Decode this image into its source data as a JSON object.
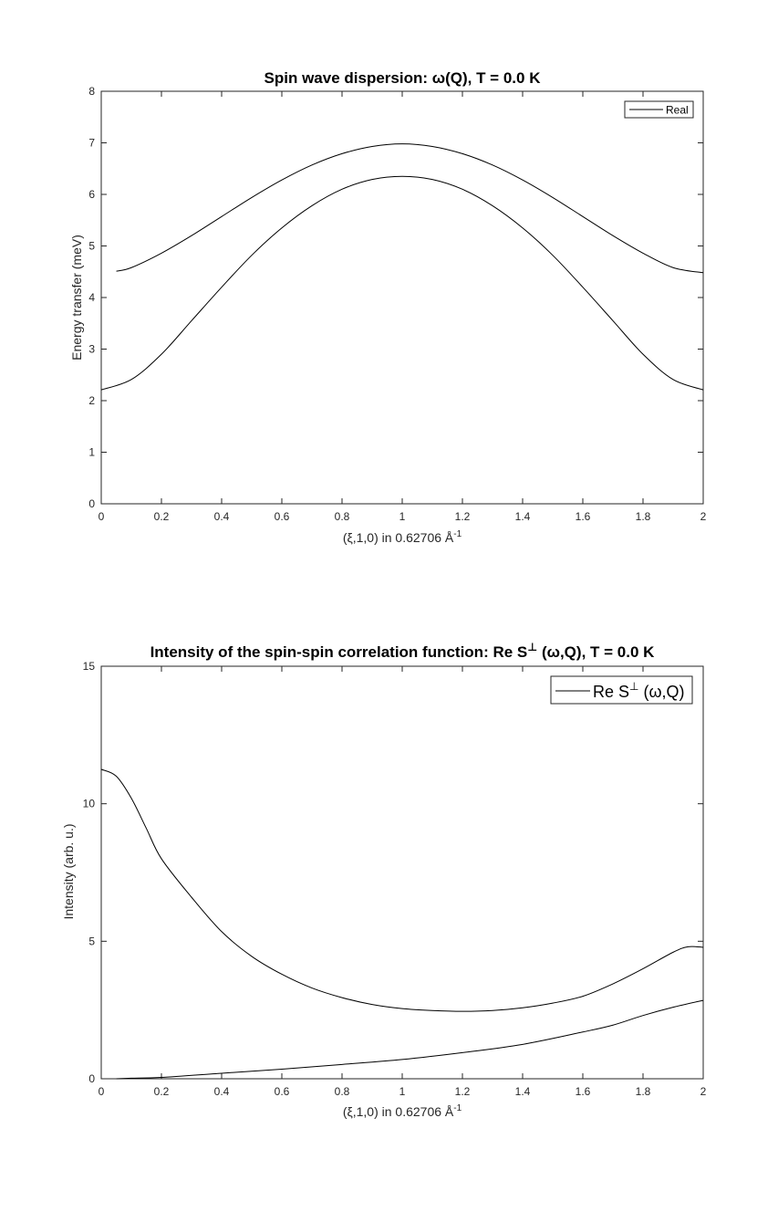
{
  "chart_data": [
    {
      "type": "line",
      "title": "Spin wave dispersion: ω(Q), T =   0.0 K",
      "xlabel": "(ξ,1,0) in 0.62706 Å",
      "xlabel_sup": "-1",
      "ylabel": "Energy transfer (meV)",
      "xlim": [
        0,
        2
      ],
      "ylim": [
        0,
        8
      ],
      "xticks": [
        0,
        0.2,
        0.4,
        0.6,
        0.8,
        1,
        1.2,
        1.4,
        1.6,
        1.8,
        2
      ],
      "xtick_labels": [
        "0",
        "0.2",
        "0.4",
        "0.6",
        "0.8",
        "1",
        "1.2",
        "1.4",
        "1.6",
        "1.8",
        "2"
      ],
      "yticks": [
        0,
        1,
        2,
        3,
        4,
        5,
        6,
        7,
        8
      ],
      "ytick_labels": [
        "0",
        "1",
        "2",
        "3",
        "4",
        "5",
        "6",
        "7",
        "8"
      ],
      "grid": false,
      "legend": {
        "entries": [
          "Real"
        ],
        "placement": "top-right"
      },
      "series": [
        {
          "name": "Real",
          "x": [
            0.05,
            0.1,
            0.2,
            0.3,
            0.4,
            0.5,
            0.6,
            0.7,
            0.8,
            0.9,
            1.0,
            1.1,
            1.2,
            1.3,
            1.4,
            1.5,
            1.6,
            1.7,
            1.8,
            1.9,
            2.0
          ],
          "y": [
            4.51,
            4.58,
            4.86,
            5.2,
            5.57,
            5.94,
            6.28,
            6.57,
            6.79,
            6.93,
            6.98,
            6.93,
            6.79,
            6.57,
            6.28,
            5.94,
            5.57,
            5.2,
            4.86,
            4.58,
            4.48
          ]
        },
        {
          "x": [
            0.0,
            0.1,
            0.2,
            0.3,
            0.4,
            0.5,
            0.6,
            0.7,
            0.8,
            0.9,
            1.0,
            1.1,
            1.2,
            1.3,
            1.4,
            1.5,
            1.6,
            1.7,
            1.8,
            1.9,
            2.0
          ],
          "y": [
            2.21,
            2.41,
            2.9,
            3.55,
            4.2,
            4.82,
            5.35,
            5.78,
            6.1,
            6.29,
            6.35,
            6.29,
            6.1,
            5.78,
            5.35,
            4.82,
            4.2,
            3.55,
            2.9,
            2.41,
            2.21
          ]
        }
      ]
    },
    {
      "type": "line",
      "title": "Intensity of the spin-spin correlation function: Re S",
      "title_sup": "⊥",
      "title_rest": " (ω,Q), T =   0.0 K",
      "xlabel": "(ξ,1,0) in 0.62706 Å",
      "xlabel_sup": "-1",
      "ylabel": "Intensity (arb. u.)",
      "xlim": [
        0,
        2
      ],
      "ylim": [
        0,
        15
      ],
      "xticks": [
        0,
        0.2,
        0.4,
        0.6,
        0.8,
        1,
        1.2,
        1.4,
        1.6,
        1.8,
        2
      ],
      "xtick_labels": [
        "0",
        "0.2",
        "0.4",
        "0.6",
        "0.8",
        "1",
        "1.2",
        "1.4",
        "1.6",
        "1.8",
        "2"
      ],
      "yticks": [
        0,
        5,
        10,
        15
      ],
      "ytick_labels": [
        "0",
        "5",
        "10",
        "15"
      ],
      "grid": false,
      "legend": {
        "entries": [
          "Re S⊥ (ω,Q)"
        ],
        "placement": "top-right"
      },
      "legend_parts": {
        "pre": "Re S",
        "sup": "⊥",
        "post": " (ω,Q)"
      },
      "series": [
        {
          "name": "Re S⊥ (ω,Q)",
          "x": [
            0.0,
            0.05,
            0.1,
            0.15,
            0.2,
            0.3,
            0.4,
            0.5,
            0.6,
            0.7,
            0.8,
            0.9,
            1.0,
            1.1,
            1.2,
            1.3,
            1.4,
            1.5,
            1.6,
            1.7,
            1.8,
            1.9,
            1.95,
            2.0
          ],
          "y": [
            11.25,
            11.0,
            10.2,
            9.1,
            8.0,
            6.6,
            5.35,
            4.45,
            3.8,
            3.3,
            2.95,
            2.7,
            2.55,
            2.48,
            2.45,
            2.48,
            2.58,
            2.75,
            3.0,
            3.45,
            4.0,
            4.6,
            4.8,
            4.78
          ]
        },
        {
          "x": [
            0.05,
            0.1,
            0.2,
            0.4,
            0.6,
            0.8,
            1.0,
            1.2,
            1.4,
            1.6,
            1.7,
            1.8,
            1.9,
            2.0
          ],
          "y": [
            0.0,
            0.02,
            0.05,
            0.2,
            0.35,
            0.52,
            0.7,
            0.95,
            1.25,
            1.7,
            1.95,
            2.3,
            2.6,
            2.85
          ]
        }
      ]
    }
  ]
}
